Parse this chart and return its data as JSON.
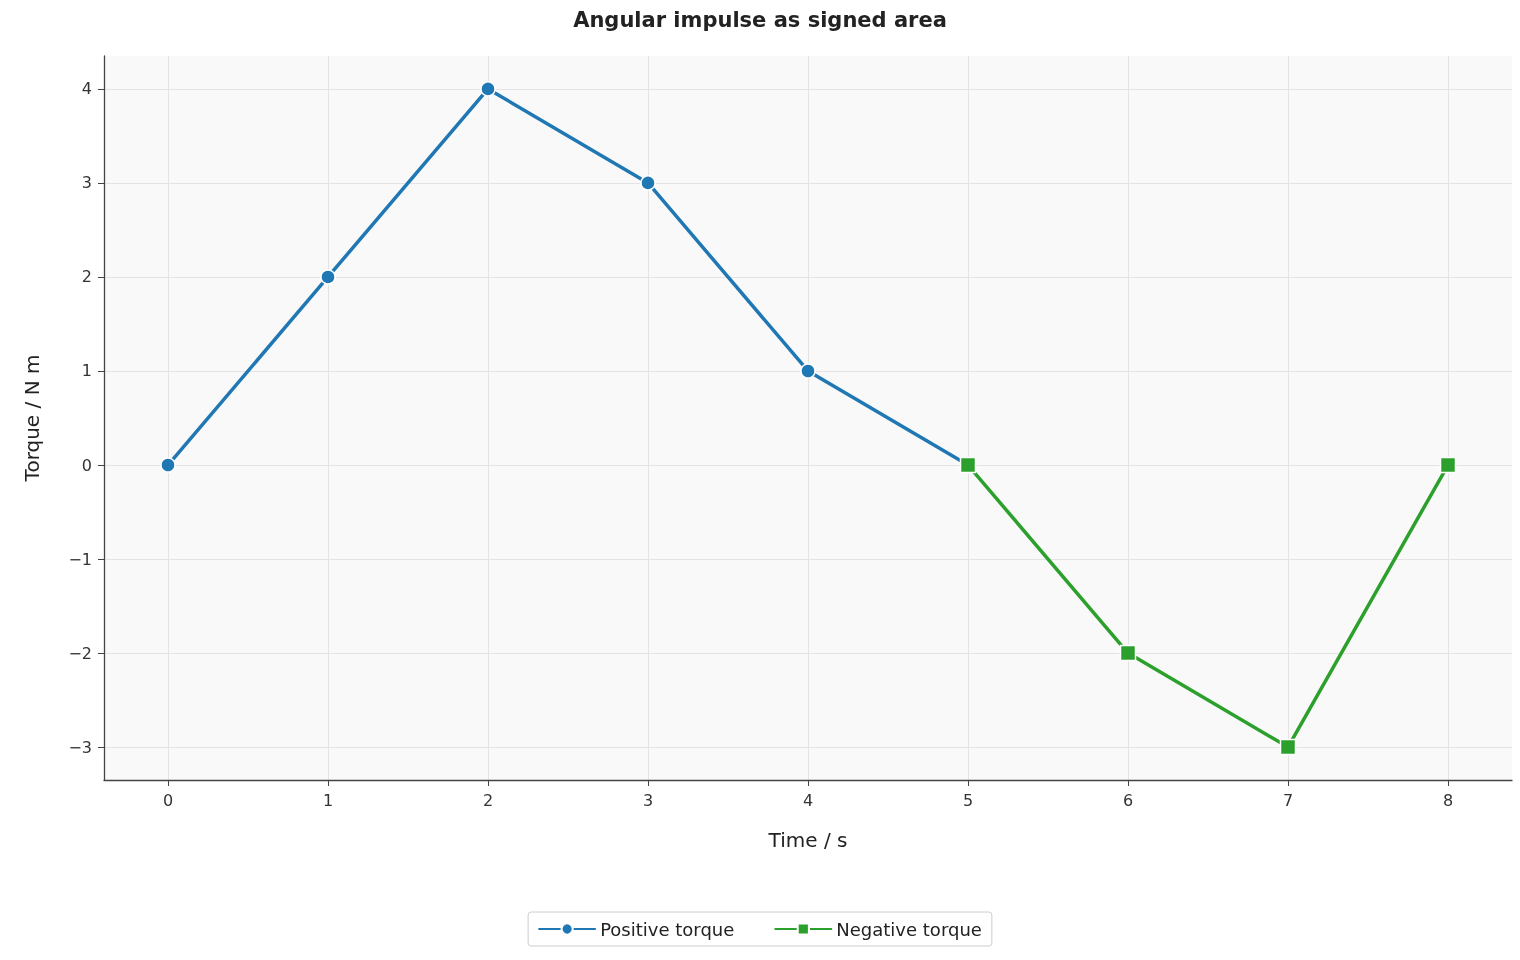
{
  "chart_data": {
    "type": "line",
    "title": "Angular impulse as signed area",
    "xlabel": "Time / s",
    "ylabel": "Torque / N m",
    "series": [
      {
        "name": "Positive torque",
        "color": "#1f77b4",
        "marker": "circle",
        "x": [
          0,
          1,
          2,
          3,
          4,
          5
        ],
        "values": [
          0,
          2,
          4,
          3,
          1,
          0
        ]
      },
      {
        "name": "Negative torque",
        "color": "#2ca02c",
        "marker": "square",
        "x": [
          5,
          6,
          7,
          8
        ],
        "values": [
          0,
          -2,
          -3,
          0
        ]
      }
    ],
    "xlim": [
      -0.4,
      8.4
    ],
    "xticks": [
      0,
      1,
      2,
      3,
      4,
      5,
      6,
      7,
      8
    ],
    "ylim": [
      -3.35,
      4.35
    ],
    "yticks": [
      {
        "value": -3,
        "label": "−3"
      },
      {
        "value": -2,
        "label": "−2"
      },
      {
        "value": -1,
        "label": "−1"
      },
      0,
      1,
      2,
      3,
      4
    ],
    "grid": true,
    "legend": "bottom",
    "line_style": "solid"
  }
}
